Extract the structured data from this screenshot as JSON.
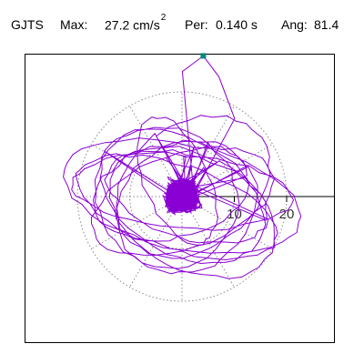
{
  "header": {
    "station": "GJTS",
    "max_label": "Max:",
    "max_value": "27.2 cm/s",
    "max_exp": "2",
    "per_label": "Per:",
    "per_value": "0.140 s",
    "ang_label": "Ang:",
    "ang_value": "81.4"
  },
  "chart_data": {
    "type": "polar-hodogram",
    "radial_ticks": [
      10,
      20
    ],
    "radial_tick_labels": [
      "10",
      "20"
    ],
    "grid": "dotted circles",
    "max_amplitude": 27.2,
    "angle_of_max": 81.4,
    "colors": {
      "trace": "#8a00d4",
      "marker": "#008b7b",
      "grid": "#888888",
      "axis": "#000000"
    }
  }
}
